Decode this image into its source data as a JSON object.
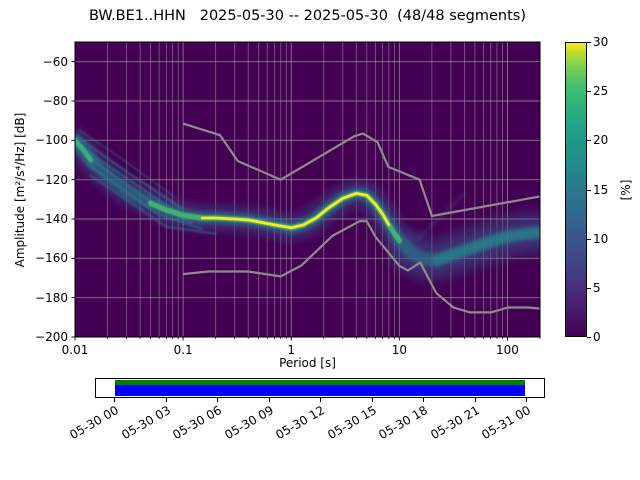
{
  "chart_data": {
    "type": "heatmap",
    "title": "BW.BE1..HHN   2025-05-30 -- 2025-05-30  (48/48 segments)",
    "xlabel": "Period [s]",
    "ylabel": "Amplitude [m²/s⁴/Hz] [dB]",
    "xscale": "log",
    "xlim": [
      0.01,
      200
    ],
    "ylim": [
      -200,
      -50
    ],
    "background_color": "#440154",
    "grid": {
      "minor_x": true,
      "color": "#b0b0b0"
    },
    "xticks": {
      "values": [
        0.01,
        0.1,
        1,
        10,
        100
      ],
      "labels": [
        "0.01",
        "0.1",
        "1",
        "10",
        "100"
      ]
    },
    "yticks": {
      "values": [
        -200,
        -180,
        -160,
        -140,
        -120,
        -100,
        -80,
        -60
      ],
      "labels": [
        "−200",
        "−180",
        "−160",
        "−140",
        "−120",
        "−100",
        "−80",
        "−60"
      ]
    },
    "colorbar": {
      "label": "[%]",
      "min": 0,
      "max": 30,
      "ticks": {
        "values": [
          0,
          5,
          10,
          15,
          20,
          25,
          30
        ],
        "labels": [
          "0",
          "5",
          "10",
          "15",
          "20",
          "25",
          "30"
        ]
      },
      "viridis_stops": [
        [
          "0%",
          "#440154"
        ],
        [
          "12%",
          "#482475"
        ],
        [
          "25%",
          "#414487"
        ],
        [
          "38%",
          "#355f8d"
        ],
        [
          "50%",
          "#2a788e"
        ],
        [
          "62%",
          "#21918c"
        ],
        [
          "74%",
          "#22a884"
        ],
        [
          "85%",
          "#44bf70"
        ],
        [
          "92%",
          "#7ad151"
        ],
        [
          "97%",
          "#bddf26"
        ],
        [
          "100%",
          "#fde725"
        ]
      ]
    },
    "series": {
      "mode": {
        "name": "PSD highest-probability ridge [Period s, dB]",
        "points": [
          [
            0.01,
            -101
          ],
          [
            0.012,
            -106
          ],
          [
            0.015,
            -112
          ],
          [
            0.02,
            -118
          ],
          [
            0.03,
            -126
          ],
          [
            0.05,
            -132
          ],
          [
            0.07,
            -135.5
          ],
          [
            0.1,
            -138
          ],
          [
            0.15,
            -139.5
          ],
          [
            0.2,
            -139.5
          ],
          [
            0.3,
            -140
          ],
          [
            0.4,
            -140.5
          ],
          [
            0.5,
            -141.5
          ],
          [
            0.7,
            -143
          ],
          [
            1.0,
            -144.5
          ],
          [
            1.3,
            -143
          ],
          [
            1.7,
            -139.5
          ],
          [
            2.2,
            -134.5
          ],
          [
            3.0,
            -129.5
          ],
          [
            4.0,
            -127
          ],
          [
            5.0,
            -128
          ],
          [
            6.0,
            -132.5
          ],
          [
            7.0,
            -137.5
          ],
          [
            8.0,
            -143
          ],
          [
            10.0,
            -151
          ],
          [
            13.0,
            -157
          ],
          [
            16.0,
            -160
          ],
          [
            22.0,
            -161
          ],
          [
            30.0,
            -158.5
          ],
          [
            45.0,
            -155
          ],
          [
            70.0,
            -151.5
          ],
          [
            100,
            -149
          ],
          [
            150,
            -147.5
          ],
          [
            200,
            -147
          ]
        ]
      },
      "noise_models": [
        {
          "name": "NHNM",
          "color": "#8c8c8c",
          "points": [
            [
              0.1,
              -91.5
            ],
            [
              0.22,
              -97.4
            ],
            [
              0.32,
              -110.5
            ],
            [
              0.8,
              -120.0
            ],
            [
              3.8,
              -98.0
            ],
            [
              4.6,
              -96.5
            ],
            [
              6.3,
              -101.0
            ],
            [
              7.9,
              -113.5
            ],
            [
              15.4,
              -120.0
            ],
            [
              20.0,
              -138.5
            ],
            [
              200.0,
              -128.5
            ]
          ]
        },
        {
          "name": "NLNM",
          "color": "#8c8c8c",
          "points": [
            [
              0.1,
              -168.0
            ],
            [
              0.17,
              -166.7
            ],
            [
              0.4,
              -166.7
            ],
            [
              0.8,
              -169.2
            ],
            [
              1.24,
              -163.7
            ],
            [
              2.4,
              -148.6
            ],
            [
              4.3,
              -141.1
            ],
            [
              5.0,
              -141.1
            ],
            [
              6.0,
              -149.0
            ],
            [
              10.0,
              -163.8
            ],
            [
              12.0,
              -166.2
            ],
            [
              15.6,
              -162.1
            ],
            [
              21.9,
              -177.5
            ],
            [
              31.6,
              -185.0
            ],
            [
              45.0,
              -187.5
            ],
            [
              70.0,
              -187.5
            ],
            [
              101.0,
              -185.0
            ],
            [
              154.0,
              -185.0
            ],
            [
              200.0,
              -185.5
            ]
          ]
        }
      ]
    },
    "density": {
      "strokes": [
        {
          "name": "right-cloud",
          "ridge": true,
          "xrange": [
            11,
            200
          ],
          "width": 46,
          "color": "#31688e",
          "opacity": 0.25,
          "blur": "b4"
        },
        {
          "name": "outer-spread",
          "ridge": true,
          "xrange": null,
          "width": 28,
          "color": "#3b528b",
          "opacity": 0.38,
          "blur": "b4"
        },
        {
          "name": "mid-spread",
          "ridge": true,
          "xrange": null,
          "width": 13,
          "color": "#2a788e",
          "opacity": 0.6,
          "blur": "b2"
        },
        {
          "name": "fan-line-1",
          "points": [
            [
              0.011,
              -99
            ],
            [
              0.03,
              -116
            ],
            [
              0.1,
              -135
            ]
          ],
          "width": 2.5,
          "color": "#26828e",
          "opacity": 0.5,
          "blur": "b1"
        },
        {
          "name": "fan-line-2",
          "points": [
            [
              0.011,
              -103
            ],
            [
              0.04,
              -124
            ],
            [
              0.1,
              -139
            ]
          ],
          "width": 2.5,
          "color": "#26828e",
          "opacity": 0.5,
          "blur": "b1"
        },
        {
          "name": "fan-line-3",
          "points": [
            [
              0.012,
              -107
            ],
            [
              0.05,
              -131
            ],
            [
              0.12,
              -142
            ]
          ],
          "width": 2.5,
          "color": "#26828e",
          "opacity": 0.45,
          "blur": "b1"
        },
        {
          "name": "fan-line-4",
          "points": [
            [
              0.013,
              -112
            ],
            [
              0.06,
              -138
            ],
            [
              0.15,
              -145
            ]
          ],
          "width": 2.5,
          "color": "#26828e",
          "opacity": 0.45,
          "blur": "b1"
        },
        {
          "name": "fan-line-5",
          "points": [
            [
              0.014,
              -118
            ],
            [
              0.07,
              -144
            ],
            [
              0.2,
              -147.5
            ]
          ],
          "width": 2.5,
          "color": "#26828e",
          "opacity": 0.4,
          "blur": "b1"
        },
        {
          "name": "fan-line-6",
          "points": [
            [
              0.011,
              -95
            ],
            [
              0.025,
              -108
            ],
            [
              0.08,
              -128
            ]
          ],
          "width": 2.0,
          "color": "#26828e",
          "opacity": 0.35,
          "blur": "b1"
        },
        {
          "name": "right-mid-band",
          "ridge": true,
          "xrange": [
            18,
            200
          ],
          "width": 9,
          "color": "#21918c",
          "opacity": 0.5,
          "blur": "b2"
        },
        {
          "name": "right-faint-streak",
          "points": [
            [
              15,
              -150
            ],
            [
              40,
              -127
            ]
          ],
          "width": 3,
          "color": "#2a788e",
          "opacity": 0.25,
          "blur": "b2"
        },
        {
          "name": "inner-band",
          "ridge": true,
          "xrange": [
            0.04,
            10
          ],
          "width": 5.5,
          "color": "#44bf70",
          "opacity": 0.85,
          "blur": "b1"
        },
        {
          "name": "left-blob-outer",
          "points": [
            [
              0.01,
              -99
            ],
            [
              0.012,
              -104
            ],
            [
              0.015,
              -111
            ]
          ],
          "width": 11,
          "color": "#31688e",
          "opacity": 0.7,
          "blur": "b2"
        },
        {
          "name": "left-blob-core",
          "points": [
            [
              0.01,
              -100
            ],
            [
              0.012,
              -105
            ],
            [
              0.014,
              -110
            ]
          ],
          "width": 5,
          "color": "#3fbc73",
          "opacity": 0.85,
          "blur": "b1"
        },
        {
          "name": "mode-core",
          "ridge": true,
          "xrange": [
            0.13,
            8.2
          ],
          "width": 2.8,
          "color": "#fde725",
          "opacity": 1.0,
          "blur": null
        }
      ]
    },
    "timeline": {
      "tick_labels": [
        "05-30 00",
        "05-30 03",
        "05-30 06",
        "05-30 09",
        "05-30 12",
        "05-30 15",
        "05-30 18",
        "05-30 21",
        "05-31 00"
      ],
      "coverage_color_top": "#008000",
      "coverage_color_bottom": "#0000ff"
    }
  }
}
